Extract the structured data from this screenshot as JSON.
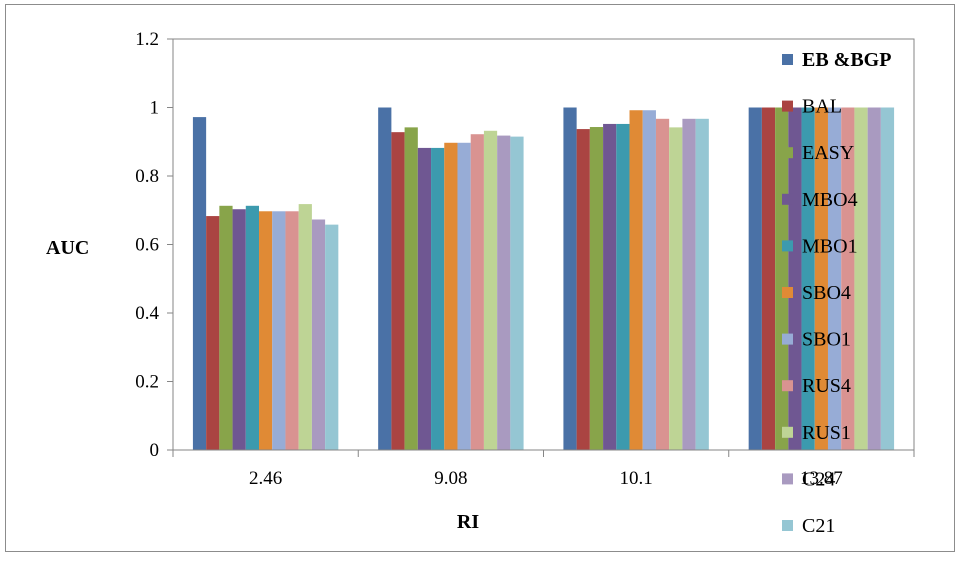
{
  "chart_data": {
    "type": "bar",
    "title": "",
    "xlabel": "RI",
    "ylabel": "AUC",
    "ylim": [
      0,
      1.2
    ],
    "yticks": [
      0,
      0.2,
      0.4,
      0.6,
      0.8,
      1,
      1.2
    ],
    "ytick_labels": [
      "0",
      "0.2",
      "0.4",
      "0.6",
      "0.8",
      "1",
      "1.2"
    ],
    "categories": [
      "2.46",
      "9.08",
      "10.1",
      "13.87"
    ],
    "grid": false,
    "legend_position": "right",
    "series": [
      {
        "name": "EB &BGP",
        "color": "#4a71a6",
        "values": [
          0.972,
          1.0,
          1.0,
          1.0
        ]
      },
      {
        "name": "BAL",
        "color": "#aa4442",
        "values": [
          0.683,
          0.928,
          0.937,
          1.0
        ]
      },
      {
        "name": "EASY",
        "color": "#88a44a",
        "values": [
          0.713,
          0.942,
          0.943,
          1.0
        ]
      },
      {
        "name": "MBO4",
        "color": "#6f5792",
        "values": [
          0.703,
          0.882,
          0.952,
          1.0
        ]
      },
      {
        "name": "MBO1",
        "color": "#3c9aae",
        "values": [
          0.713,
          0.882,
          0.952,
          1.0
        ]
      },
      {
        "name": "SBO4",
        "color": "#e08a35",
        "values": [
          0.697,
          0.897,
          0.992,
          1.0
        ]
      },
      {
        "name": "SBO1",
        "color": "#97acd6",
        "values": [
          0.697,
          0.897,
          0.992,
          1.0
        ]
      },
      {
        "name": "RUS4",
        "color": "#d99391",
        "values": [
          0.697,
          0.922,
          0.967,
          1.0
        ]
      },
      {
        "name": "RUS1",
        "color": "#bed495",
        "values": [
          0.718,
          0.932,
          0.942,
          1.0
        ]
      },
      {
        "name": "C24",
        "color": "#a99ac0",
        "values": [
          0.673,
          0.918,
          0.967,
          1.0
        ]
      },
      {
        "name": "C21",
        "color": "#95c6d3",
        "values": [
          0.658,
          0.915,
          0.967,
          1.0
        ]
      }
    ]
  }
}
